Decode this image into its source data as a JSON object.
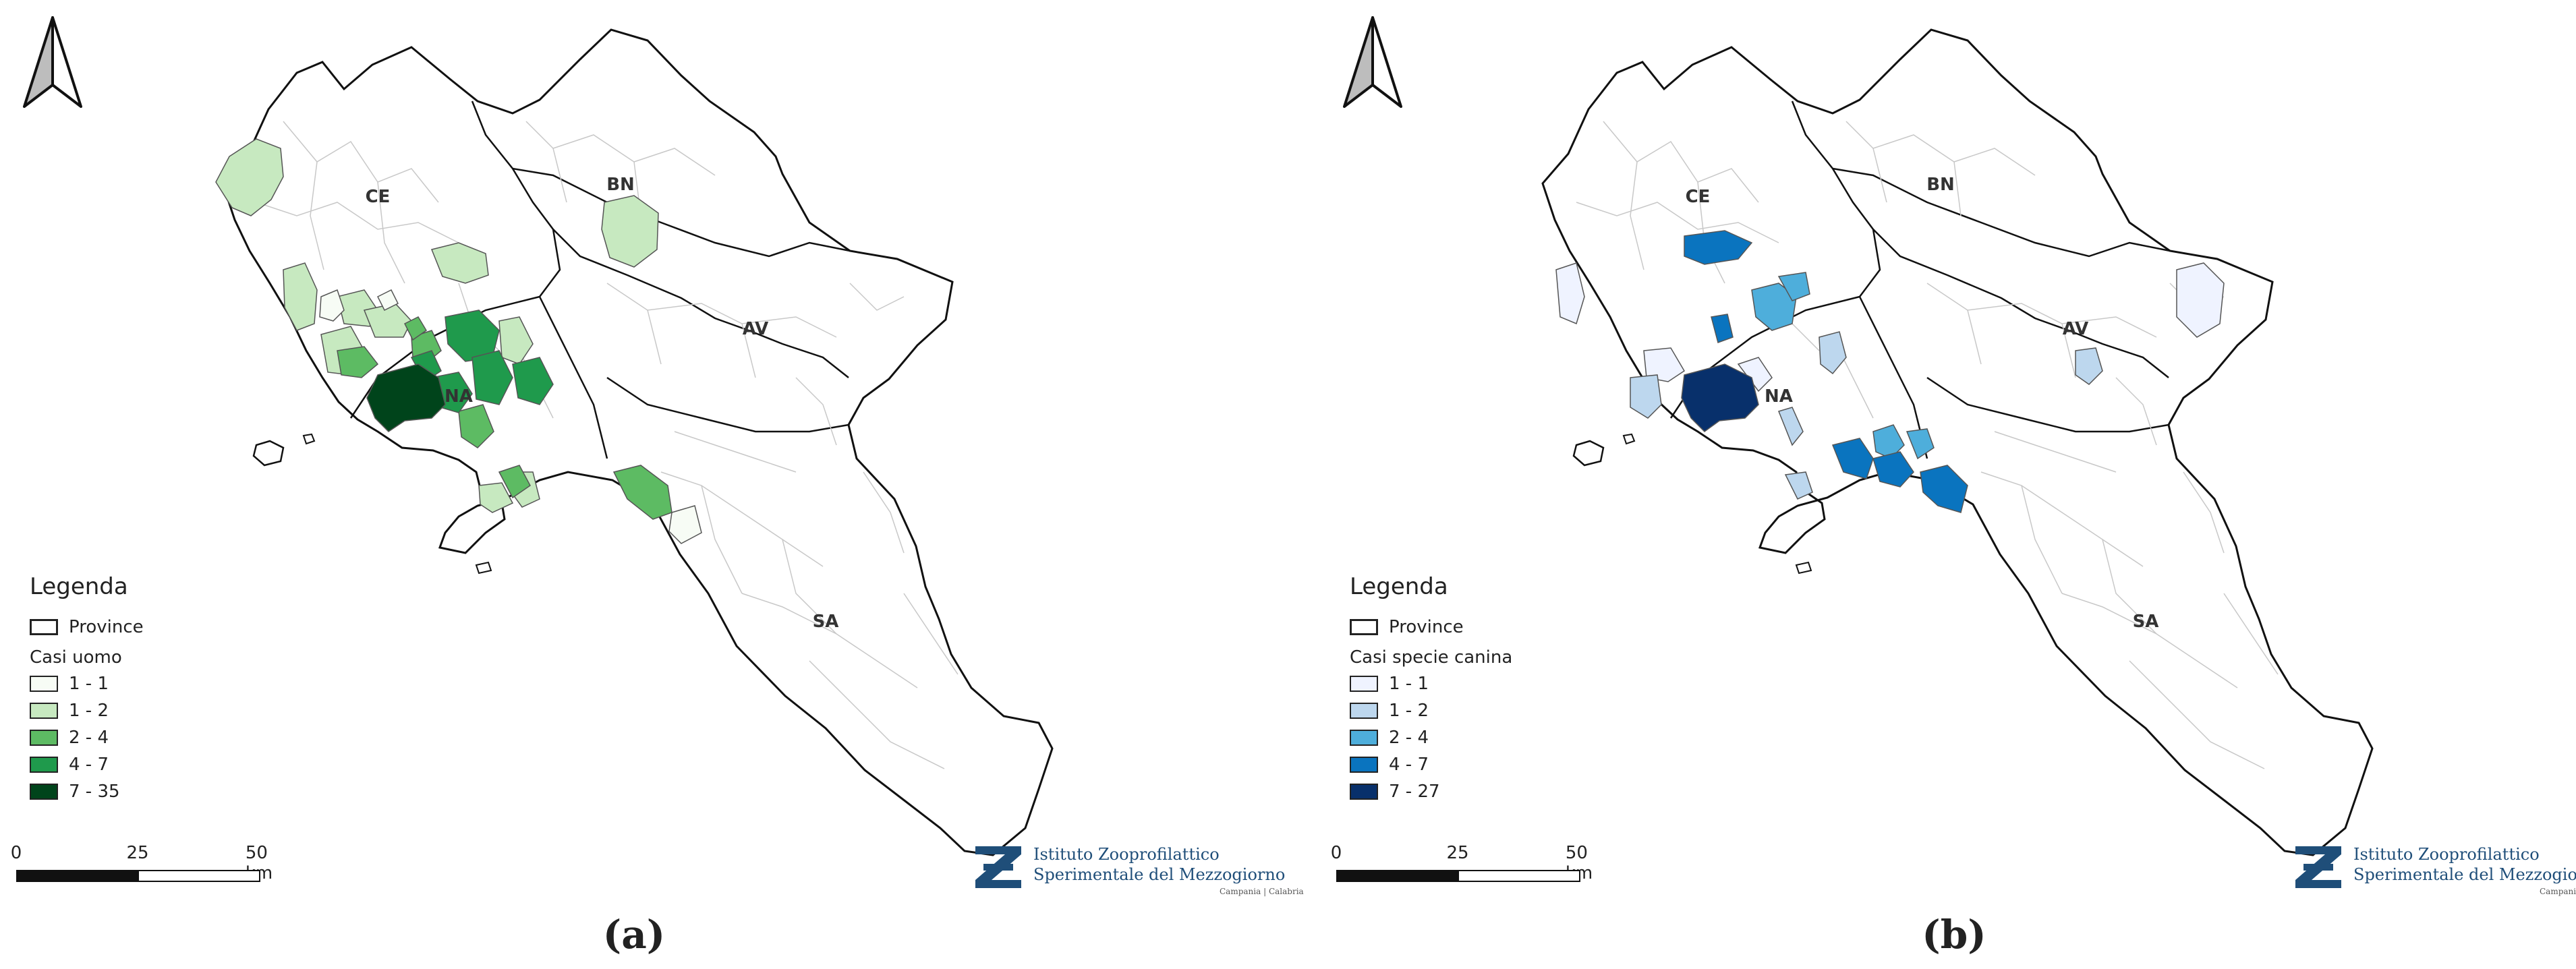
{
  "panels": [
    {
      "caption": "(a)",
      "legend": {
        "title": "Legenda",
        "province_label": "Province",
        "classes_title": "Casi uomo",
        "classes": [
          {
            "label": "1 - 1",
            "color": "#f7fcf5"
          },
          {
            "label": "1 - 2",
            "color": "#c7e9c0"
          },
          {
            "label": "2 - 4",
            "color": "#5dbb63"
          },
          {
            "label": "4 - 7",
            "color": "#1f9a4c"
          },
          {
            "label": "7 - 35",
            "color": "#00441b"
          }
        ]
      }
    },
    {
      "caption": "(b)",
      "legend": {
        "title": "Legenda",
        "province_label": "Province",
        "classes_title": "Casi specie canina",
        "classes": [
          {
            "label": "1 - 1",
            "color": "#eff3ff"
          },
          {
            "label": "1 - 2",
            "color": "#bdd7ee"
          },
          {
            "label": "2 - 4",
            "color": "#4eaedb"
          },
          {
            "label": "4 - 7",
            "color": "#0a74bf"
          },
          {
            "label": "7 - 27",
            "color": "#08306b"
          }
        ]
      }
    }
  ],
  "provinces": [
    "CE",
    "BN",
    "NA",
    "AV",
    "SA"
  ],
  "scale": {
    "labels": [
      "0",
      "25",
      "50 km"
    ]
  },
  "logo": {
    "line1": "Istituto Zooprofilattico",
    "line2": "Sperimentale del Mezzogiorno",
    "line3": "Campania | Calabria",
    "color": "#1f4e79"
  }
}
